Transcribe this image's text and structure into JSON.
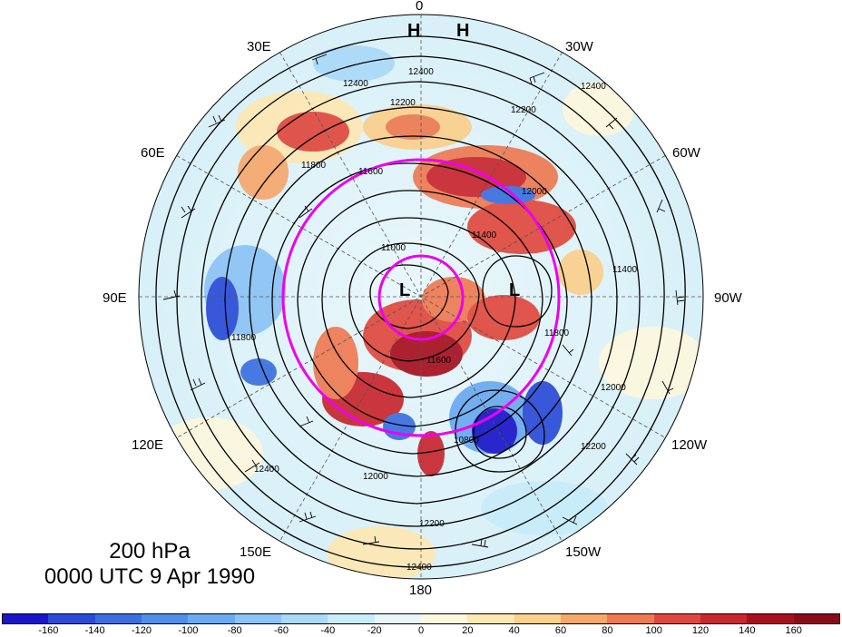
{
  "map": {
    "level_title": "200 hPa",
    "time_title": "0000 UTC 9 Apr 1990",
    "longitude_labels": {
      "lon_0": "0",
      "lon_30w": "30W",
      "lon_60w": "60W",
      "lon_90w": "90W",
      "lon_120w": "120W",
      "lon_150w": "150W",
      "lon_180": "180",
      "lon_150e": "150E",
      "lon_120e": "120E",
      "lon_90e": "90E",
      "lon_60e": "60E",
      "lon_30e": "30E"
    },
    "pressure_centers": [
      "H",
      "H",
      "L",
      "L"
    ],
    "contour_labels": [
      "12400",
      "12400",
      "12400",
      "12400",
      "12400",
      "12200",
      "12200",
      "12200",
      "12200",
      "12000",
      "12000",
      "12000",
      "11800",
      "11800",
      "11800",
      "11600",
      "11600",
      "11400",
      "11400",
      "11000",
      "10800"
    ],
    "colorbar": {
      "labels": [
        "-160",
        "-140",
        "-120",
        "-100",
        "-80",
        "-60",
        "-40",
        "-20",
        "0",
        "20",
        "40",
        "60",
        "80",
        "100",
        "120",
        "140",
        "160"
      ],
      "colors": [
        "#1a16c8",
        "#2a4bd7",
        "#3b6fe0",
        "#4f8fea",
        "#6aaaf0",
        "#8cc3f5",
        "#aad9f7",
        "#c8ecf9",
        "#e6f6fb",
        "#fdf7de",
        "#fde8b4",
        "#fbcf8c",
        "#f6a86c",
        "#ee7a52",
        "#e0483e",
        "#c9262f",
        "#a8101f",
        "#8a0c1a"
      ]
    },
    "overlay_colors": {
      "ring": "#ee00ee",
      "contour": "#000000",
      "wind": "#000000"
    }
  }
}
